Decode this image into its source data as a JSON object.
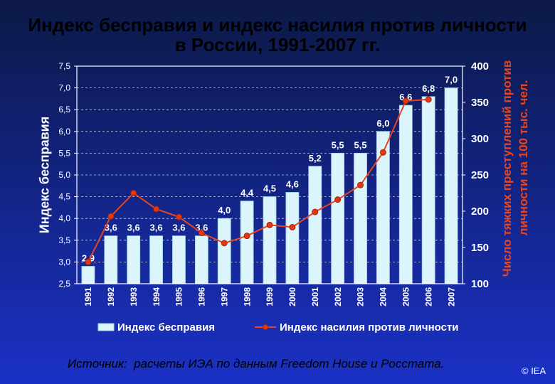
{
  "colors": {
    "background_top": "#0c1946",
    "background_mid": "#12237f",
    "background_bottom": "#1b31c6",
    "title": "#000000",
    "bar_fill": "#dcf5fd",
    "bar_stroke": "#9fd6ea",
    "line": "#e8451e",
    "marker": "#e03a14",
    "marker_stroke": "#a8230a",
    "right_axis_title": "#e8451e",
    "text": "#ffffff"
  },
  "chart_data": {
    "type": "bar",
    "title": [
      "Индекс бесправия и индекс насилия против личности",
      "в России, 1991-2007 гг."
    ],
    "xlabel": "",
    "ylabel": "Индекс бесправия",
    "ylabel_right": [
      "Число тяжких преступлений против",
      "личности на 100 тыс. чел."
    ],
    "categories": [
      "1991",
      "1992",
      "1993",
      "1994",
      "1995",
      "1996",
      "1997",
      "1998",
      "1999",
      "2000",
      "2001",
      "2002",
      "2003",
      "2004",
      "2005",
      "2006",
      "2007"
    ],
    "series": [
      {
        "name": "Индекс бесправия",
        "type": "bar",
        "axis": "left",
        "values": [
          2.9,
          3.6,
          3.6,
          3.6,
          3.6,
          3.6,
          4.0,
          4.4,
          4.5,
          4.6,
          5.2,
          5.5,
          5.5,
          6.0,
          6.6,
          6.8,
          7.0
        ],
        "labels": [
          "2,9",
          "3,6",
          "3,6",
          "3,6",
          "3,6",
          "3,6",
          "4,0",
          "4,4",
          "4,5",
          "4,6",
          "5,2",
          "5,5",
          "5,5",
          "6,0",
          "6,6",
          "6,8",
          "7,0"
        ]
      },
      {
        "name": "Индекс насилия против личности",
        "type": "line",
        "axis": "right",
        "values": [
          130,
          193,
          225,
          203,
          192,
          170,
          156,
          166,
          181,
          178,
          199,
          216,
          236,
          281,
          352,
          354,
          null
        ]
      }
    ],
    "ylim": [
      2.5,
      7.5
    ],
    "yticks": [
      2.5,
      3.0,
      3.5,
      4.0,
      4.5,
      5.0,
      5.5,
      6.0,
      6.5,
      7.0,
      7.5
    ],
    "ytick_labels": [
      "2,5",
      "3,0",
      "3,5",
      "4,0",
      "4,5",
      "5,0",
      "5,5",
      "6,0",
      "6,5",
      "7,0",
      "7,5"
    ],
    "ylim_right": [
      100,
      400
    ],
    "yticks_right": [
      100,
      150,
      200,
      250,
      300,
      350,
      400
    ],
    "grid": true,
    "legend": "bottom"
  },
  "footer": {
    "source": "Источник:  расчеты ИЭА по данным Freedom House и Росстата.",
    "copyright": "© IEA"
  }
}
